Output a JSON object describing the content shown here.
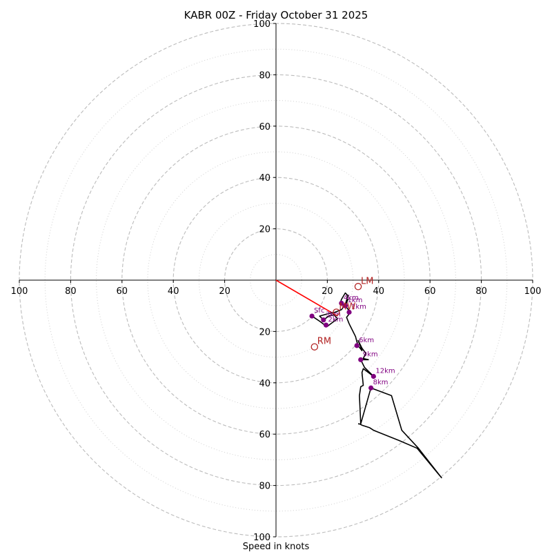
{
  "chart_data": {
    "type": "line",
    "title": "KABR 00Z - Friday October 31 2025",
    "xlabel": "Speed in knots",
    "ylabel": "",
    "range": [
      -100,
      100
    ],
    "rings_major": [
      20,
      40,
      60,
      80,
      100
    ],
    "rings_minor": [
      10,
      30,
      50,
      70,
      90
    ],
    "x_ticks": [
      {
        "value": -100,
        "label": "100"
      },
      {
        "value": -80,
        "label": "80"
      },
      {
        "value": -60,
        "label": "60"
      },
      {
        "value": -40,
        "label": "40"
      },
      {
        "value": -20,
        "label": "20"
      },
      {
        "value": 20,
        "label": "20"
      },
      {
        "value": 40,
        "label": "40"
      },
      {
        "value": 60,
        "label": "60"
      },
      {
        "value": 80,
        "label": "80"
      },
      {
        "value": 100,
        "label": "100"
      }
    ],
    "y_ticks": [
      {
        "value": 100,
        "label": "100"
      },
      {
        "value": 80,
        "label": "80"
      },
      {
        "value": 60,
        "label": "60"
      },
      {
        "value": 40,
        "label": "40"
      },
      {
        "value": 20,
        "label": "20"
      },
      {
        "value": -20,
        "label": "20"
      },
      {
        "value": -40,
        "label": "40"
      },
      {
        "value": -60,
        "label": "60"
      },
      {
        "value": -80,
        "label": "80"
      },
      {
        "value": -100,
        "label": "100"
      }
    ],
    "hodograph": {
      "u": [
        14.0,
        15.5,
        17.0,
        19.0,
        20.0,
        22.0,
        24.0,
        22.5,
        20.5,
        18.5,
        17.0,
        20.5,
        23.0,
        25.5,
        27.0,
        28.0,
        27.0,
        25.5,
        25.0,
        26.5,
        27.5,
        28.0,
        27.0,
        29.0,
        27.5,
        28.5,
        30.0,
        31.0,
        31.5,
        32.0,
        33.5,
        33.0,
        32.0,
        33.5,
        35.0,
        34.0,
        36.0,
        33.0,
        34.5,
        38.0,
        34.0,
        33.5,
        34.0,
        33.0,
        32.5,
        33.0,
        37.0,
        45.0,
        49.0,
        55.5,
        64.5,
        55.0,
        48.0,
        38.0,
        36.5,
        33.5,
        32.5,
        32.0
      ],
      "v": [
        -14.0,
        -15.0,
        -16.0,
        -17.5,
        -18.0,
        -16.5,
        -15.0,
        -13.5,
        -14.0,
        -15.5,
        -14.0,
        -13.0,
        -12.5,
        -11.5,
        -9.5,
        -6.0,
        -5.0,
        -7.5,
        -9.0,
        -10.0,
        -8.5,
        -7.5,
        -10.0,
        -12.5,
        -14.5,
        -17.0,
        -20.0,
        -22.0,
        -24.0,
        -25.5,
        -27.5,
        -26.0,
        -23.5,
        -26.5,
        -28.5,
        -30.5,
        -31.0,
        -31.0,
        -34.0,
        -37.5,
        -34.5,
        -36.0,
        -41.0,
        -41.5,
        -45.0,
        -56.0,
        -42.0,
        -45.0,
        -58.5,
        -65.5,
        -77.0,
        -65.5,
        -62.5,
        -58.5,
        -57.5,
        -56.5,
        -56.0,
        -56.0
      ]
    },
    "height_markers": [
      {
        "label": "Sfc",
        "u": 14.0,
        "v": -14.0
      },
      {
        "label": "3km",
        "u": 18.5,
        "v": -15.5
      },
      {
        "label": "2km",
        "u": 19.5,
        "v": -17.5
      },
      {
        "label": "4km",
        "u": 25.5,
        "v": -9.0
      },
      {
        "label": "1km",
        "u": 27.0,
        "v": -10.0
      },
      {
        "label": "1km",
        "u": 28.5,
        "v": -12.5
      },
      {
        "label": "6km",
        "u": 31.5,
        "v": -25.5
      },
      {
        "label": "9km",
        "u": 33.0,
        "v": -31.0
      },
      {
        "label": "12km",
        "u": 38.0,
        "v": -37.5
      },
      {
        "label": "8km",
        "u": 37.0,
        "v": -42.0
      }
    ],
    "storm_motion": [
      {
        "label": "LM",
        "u": 32.0,
        "v": -2.5
      },
      {
        "label": "RM",
        "u": 15.0,
        "v": -26.0
      },
      {
        "label": "MW",
        "u": 23.5,
        "v": -12.5
      }
    ],
    "shear_vector": {
      "u": [
        0,
        24.0
      ],
      "v": [
        0,
        -14.0
      ]
    },
    "colors": {
      "hodograph": "#000000",
      "height_marker": "#800080",
      "storm_motion": "#b22222",
      "shear_vector": "#ff0000",
      "ring": "#bbbbbb"
    }
  }
}
